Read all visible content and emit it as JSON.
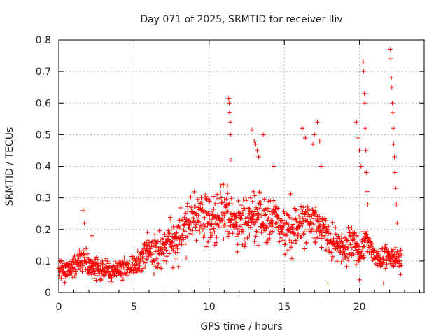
{
  "chart_data": {
    "type": "scatter",
    "title": "Day 071 of 2025, SRMTID for receiver lliv",
    "xlabel": "GPS time / hours",
    "ylabel": "SRMTID / TECUs",
    "xlim": [
      0,
      24.3
    ],
    "ylim": [
      0,
      0.8
    ],
    "x_ticks": [
      0,
      5,
      10,
      15,
      20
    ],
    "x_tick_labels": [
      "0",
      "5",
      "10",
      "15",
      "20"
    ],
    "y_ticks": [
      0,
      0.1,
      0.2,
      0.3,
      0.4,
      0.5,
      0.6,
      0.7,
      0.8
    ],
    "y_tick_labels": [
      "0",
      "0.1",
      "0.2",
      "0.3",
      "0.4",
      "0.5",
      "0.6",
      "0.7",
      "0.8"
    ],
    "grid": true,
    "marker": "+",
    "marker_color": "#ff0000",
    "series": [
      {
        "name": "SRMTID",
        "trend": [
          [
            0.0,
            0.07
          ],
          [
            0.5,
            0.07
          ],
          [
            1.0,
            0.09
          ],
          [
            1.5,
            0.1
          ],
          [
            2.0,
            0.09
          ],
          [
            2.5,
            0.08
          ],
          [
            3.0,
            0.07
          ],
          [
            3.5,
            0.06
          ],
          [
            4.0,
            0.07
          ],
          [
            4.5,
            0.08
          ],
          [
            5.0,
            0.09
          ],
          [
            5.5,
            0.11
          ],
          [
            6.0,
            0.13
          ],
          [
            6.5,
            0.14
          ],
          [
            7.0,
            0.15
          ],
          [
            7.5,
            0.16
          ],
          [
            8.0,
            0.18
          ],
          [
            8.5,
            0.22
          ],
          [
            9.0,
            0.24
          ],
          [
            9.5,
            0.25
          ],
          [
            10.0,
            0.24
          ],
          [
            10.5,
            0.24
          ],
          [
            11.0,
            0.24
          ],
          [
            11.5,
            0.23
          ],
          [
            12.0,
            0.23
          ],
          [
            12.5,
            0.23
          ],
          [
            13.0,
            0.24
          ],
          [
            13.5,
            0.23
          ],
          [
            14.0,
            0.24
          ],
          [
            14.5,
            0.22
          ],
          [
            15.0,
            0.21
          ],
          [
            15.5,
            0.2
          ],
          [
            16.0,
            0.21
          ],
          [
            16.5,
            0.22
          ],
          [
            17.0,
            0.24
          ],
          [
            17.5,
            0.2
          ],
          [
            18.0,
            0.16
          ],
          [
            18.5,
            0.15
          ],
          [
            19.0,
            0.14
          ],
          [
            19.5,
            0.16
          ],
          [
            20.0,
            0.12
          ],
          [
            20.3,
            0.15
          ],
          [
            20.5,
            0.17
          ],
          [
            21.0,
            0.11
          ],
          [
            21.5,
            0.11
          ],
          [
            22.0,
            0.12
          ],
          [
            22.5,
            0.11
          ],
          [
            22.8,
            0.1
          ]
        ],
        "spread": [
          [
            0.0,
            0.03
          ],
          [
            1.0,
            0.03
          ],
          [
            2.0,
            0.03
          ],
          [
            3.0,
            0.03
          ],
          [
            4.0,
            0.03
          ],
          [
            5.0,
            0.03
          ],
          [
            6.0,
            0.04
          ],
          [
            8.0,
            0.06
          ],
          [
            9.0,
            0.06
          ],
          [
            12.0,
            0.07
          ],
          [
            15.0,
            0.06
          ],
          [
            18.0,
            0.05
          ],
          [
            20.0,
            0.04
          ],
          [
            21.0,
            0.03
          ],
          [
            22.8,
            0.03
          ]
        ],
        "n_points": 1300,
        "spikes": [
          [
            1.62,
            0.26
          ],
          [
            1.7,
            0.22
          ],
          [
            2.2,
            0.18
          ],
          [
            5.9,
            0.19
          ],
          [
            11.3,
            0.615
          ],
          [
            11.33,
            0.6
          ],
          [
            11.36,
            0.57
          ],
          [
            11.4,
            0.54
          ],
          [
            11.42,
            0.5
          ],
          [
            11.45,
            0.42
          ],
          [
            12.85,
            0.515
          ],
          [
            13.0,
            0.48
          ],
          [
            13.1,
            0.47
          ],
          [
            13.2,
            0.45
          ],
          [
            13.3,
            0.43
          ],
          [
            13.6,
            0.5
          ],
          [
            14.3,
            0.4
          ],
          [
            16.2,
            0.52
          ],
          [
            16.4,
            0.49
          ],
          [
            16.9,
            0.47
          ],
          [
            17.0,
            0.5
          ],
          [
            17.2,
            0.54
          ],
          [
            17.35,
            0.48
          ],
          [
            17.45,
            0.4
          ],
          [
            19.8,
            0.54
          ],
          [
            19.9,
            0.49
          ],
          [
            20.0,
            0.45
          ],
          [
            20.1,
            0.4
          ],
          [
            20.25,
            0.73
          ],
          [
            20.28,
            0.7
          ],
          [
            20.32,
            0.63
          ],
          [
            20.35,
            0.6
          ],
          [
            20.38,
            0.52
          ],
          [
            20.42,
            0.45
          ],
          [
            20.45,
            0.38
          ],
          [
            20.5,
            0.32
          ],
          [
            20.55,
            0.28
          ],
          [
            22.05,
            0.77
          ],
          [
            22.08,
            0.74
          ],
          [
            22.12,
            0.68
          ],
          [
            22.15,
            0.65
          ],
          [
            22.18,
            0.6
          ],
          [
            22.22,
            0.57
          ],
          [
            22.25,
            0.52
          ],
          [
            22.28,
            0.47
          ],
          [
            22.32,
            0.43
          ],
          [
            22.35,
            0.38
          ],
          [
            22.4,
            0.33
          ],
          [
            22.45,
            0.28
          ],
          [
            22.5,
            0.22
          ],
          [
            17.9,
            0.03
          ],
          [
            20.0,
            0.04
          ],
          [
            21.6,
            0.03
          ]
        ]
      }
    ]
  }
}
